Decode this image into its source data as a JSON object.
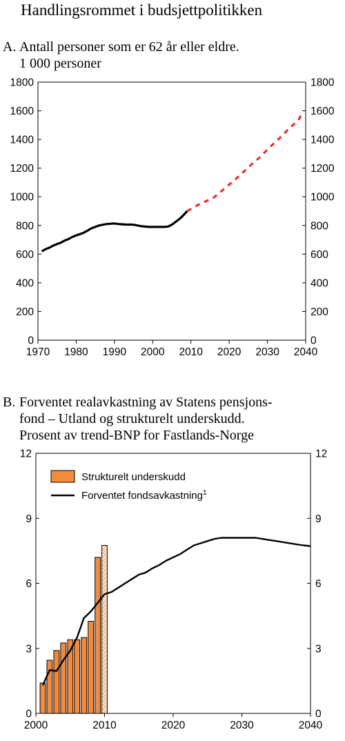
{
  "page_title": "Handlingsrommet i budsjettpolitikken",
  "chart_data": [
    {
      "type": "line",
      "panel_label": "A.",
      "title_lines": [
        "Antall personer som er 62 år eller eldre.",
        "1 000 personer"
      ],
      "xlim": [
        1970,
        2040
      ],
      "ylim": [
        0,
        1800
      ],
      "x_ticks": [
        1970,
        1980,
        1990,
        2000,
        2010,
        2020,
        2030,
        2040
      ],
      "y_ticks": [
        0,
        200,
        400,
        600,
        800,
        1000,
        1200,
        1400,
        1600,
        1800
      ],
      "grid": false,
      "series": [
        {
          "style": "solid",
          "color": "#000000",
          "x": [
            1971,
            1972,
            1973,
            1974,
            1975,
            1976,
            1977,
            1978,
            1979,
            1980,
            1981,
            1982,
            1983,
            1984,
            1985,
            1986,
            1987,
            1988,
            1989,
            1990,
            1991,
            1992,
            1993,
            1994,
            1995,
            1996,
            1997,
            1998,
            1999,
            2000,
            2001,
            2002,
            2003,
            2004,
            2005,
            2006,
            2007,
            2008,
            2009
          ],
          "y": [
            620,
            635,
            645,
            660,
            670,
            680,
            695,
            705,
            720,
            730,
            740,
            750,
            765,
            780,
            790,
            800,
            805,
            810,
            812,
            814,
            810,
            808,
            806,
            806,
            805,
            800,
            795,
            792,
            790,
            790,
            790,
            790,
            790,
            792,
            805,
            825,
            845,
            870,
            900
          ]
        },
        {
          "style": "dashed",
          "color": "#e8332f",
          "x": [
            2009,
            2010,
            2012,
            2014,
            2016,
            2018,
            2020,
            2022,
            2024,
            2026,
            2028,
            2030,
            2032,
            2034,
            2036,
            2038,
            2039
          ],
          "y": [
            900,
            915,
            945,
            970,
            995,
            1040,
            1085,
            1130,
            1180,
            1230,
            1275,
            1330,
            1380,
            1430,
            1485,
            1530,
            1580
          ]
        }
      ]
    },
    {
      "type": "bar+line",
      "panel_label": "B.",
      "title_lines": [
        "Forventet realavkastning av Statens pensjons-",
        "fond – Utland og strukturelt underskudd.",
        "Prosent av trend-BNP for Fastlands-Norge"
      ],
      "xlim": [
        2000,
        2040
      ],
      "ylim": [
        0,
        12
      ],
      "x_ticks": [
        2000,
        2010,
        2020,
        2030,
        2040
      ],
      "y_ticks": [
        0,
        3,
        6,
        9,
        12
      ],
      "grid": false,
      "legend": {
        "placement": "top-left",
        "items": [
          {
            "label": "Strukturelt underskudd",
            "kind": "bar",
            "color": "#f28c3c"
          },
          {
            "label": "Forventet fondsavkastning",
            "superscript": "1",
            "kind": "line",
            "color": "#000000"
          }
        ]
      },
      "bars": {
        "name": "Strukturelt underskudd",
        "color": "#f28c3c",
        "x": [
          2001,
          2002,
          2003,
          2004,
          2005,
          2006,
          2007,
          2008,
          2009,
          2010
        ],
        "values": [
          1.4,
          2.45,
          2.9,
          3.25,
          3.4,
          3.4,
          3.5,
          4.25,
          7.2,
          7.75
        ],
        "hatched_last": true
      },
      "line": {
        "name": "Forventet fondsavkastning",
        "color": "#000000",
        "x": [
          2001,
          2002,
          2003,
          2004,
          2005,
          2006,
          2007,
          2008,
          2009,
          2010,
          2011,
          2012,
          2013,
          2014,
          2015,
          2016,
          2017,
          2018,
          2019,
          2020,
          2021,
          2022,
          2023,
          2024,
          2025,
          2026,
          2027,
          2028,
          2029,
          2030,
          2031,
          2032,
          2033,
          2034,
          2035,
          2036,
          2037,
          2038,
          2039,
          2040
        ],
        "y": [
          1.3,
          2.0,
          1.95,
          2.45,
          2.9,
          3.5,
          4.4,
          4.7,
          5.1,
          5.5,
          5.6,
          5.8,
          6.0,
          6.2,
          6.4,
          6.5,
          6.7,
          6.85,
          7.05,
          7.2,
          7.35,
          7.55,
          7.75,
          7.85,
          7.95,
          8.05,
          8.1,
          8.1,
          8.1,
          8.1,
          8.1,
          8.1,
          8.05,
          8.0,
          7.95,
          7.9,
          7.85,
          7.8,
          7.75,
          7.72
        ]
      }
    }
  ]
}
